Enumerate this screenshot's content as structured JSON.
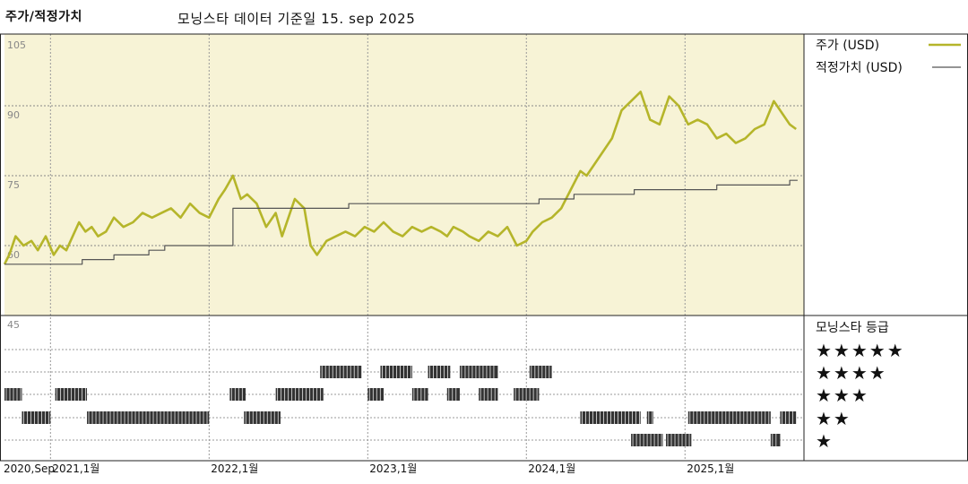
{
  "header": {
    "left_title": "주가/적정가치",
    "center_title": "모닝스타 데이터 기준일 15. sep 2025"
  },
  "legend": {
    "price_label": "주가 (USD)",
    "fair_value_label": "적정가치 (USD)",
    "price_color": "#b5b52a",
    "fair_value_color": "#555555"
  },
  "rating_panel": {
    "title": "모닝스타 등급",
    "stars": [
      "★★★★★",
      "★★★★",
      "★★★",
      "★★",
      "★"
    ]
  },
  "colors": {
    "plot_background": "#f7f3d6",
    "rating_bar": "#333333"
  },
  "chart_data": {
    "type": "line",
    "y_ticks": [
      "105",
      "90",
      "75",
      "60",
      "45"
    ],
    "ylim": [
      45,
      105
    ],
    "x_ticks": [
      "2020,Sep",
      "2021,1월",
      "2022,1월",
      "2023,1월",
      "2024,1월",
      "2025,1월"
    ],
    "x_tick_dates": [
      2020.71,
      2021.0,
      2022.0,
      2023.0,
      2024.0,
      2025.0
    ],
    "xlim": [
      2020.71,
      2025.75
    ],
    "series": [
      {
        "name": "주가 (USD)",
        "x": [
          2020.71,
          2020.74,
          2020.78,
          2020.83,
          2020.88,
          2020.92,
          2020.97,
          2021.02,
          2021.06,
          2021.1,
          2021.14,
          2021.18,
          2021.22,
          2021.26,
          2021.3,
          2021.35,
          2021.4,
          2021.46,
          2021.52,
          2021.58,
          2021.64,
          2021.7,
          2021.76,
          2021.82,
          2021.88,
          2021.94,
          2022.0,
          2022.06,
          2022.1,
          2022.15,
          2022.2,
          2022.24,
          2022.3,
          2022.36,
          2022.42,
          2022.46,
          2022.5,
          2022.54,
          2022.6,
          2022.64,
          2022.68,
          2022.74,
          2022.8,
          2022.86,
          2022.92,
          2022.98,
          2023.04,
          2023.1,
          2023.16,
          2023.22,
          2023.28,
          2023.34,
          2023.4,
          2023.46,
          2023.5,
          2023.54,
          2023.6,
          2023.64,
          2023.7,
          2023.76,
          2023.82,
          2023.88,
          2023.94,
          2024.0,
          2024.04,
          2024.1,
          2024.16,
          2024.22,
          2024.28,
          2024.34,
          2024.38,
          2024.42,
          2024.48,
          2024.54,
          2024.6,
          2024.66,
          2024.72,
          2024.78,
          2024.84,
          2024.9,
          2024.96,
          2025.02,
          2025.08,
          2025.14,
          2025.2,
          2025.26,
          2025.32,
          2025.38,
          2025.44,
          2025.5,
          2025.56,
          2025.62,
          2025.66,
          2025.7
        ],
        "values": [
          56,
          58,
          62,
          60,
          61,
          59,
          62,
          58,
          60,
          59,
          62,
          65,
          63,
          64,
          62,
          63,
          66,
          64,
          65,
          67,
          66,
          67,
          68,
          66,
          69,
          67,
          66,
          70,
          72,
          75,
          70,
          71,
          69,
          64,
          67,
          62,
          66,
          70,
          68,
          60,
          58,
          61,
          62,
          63,
          62,
          64,
          63,
          65,
          63,
          62,
          64,
          63,
          64,
          63,
          62,
          64,
          63,
          62,
          61,
          63,
          62,
          64,
          60,
          61,
          63,
          65,
          66,
          68,
          72,
          76,
          75,
          77,
          80,
          83,
          89,
          91,
          93,
          87,
          86,
          92,
          90,
          86,
          87,
          86,
          83,
          84,
          82,
          83,
          85,
          86,
          91,
          88,
          86,
          85
        ]
      },
      {
        "name": "적정가치 (USD)",
        "x": [
          2020.71,
          2020.72,
          2021.0,
          2021.2,
          2021.2,
          2021.4,
          2021.4,
          2021.62,
          2021.62,
          2021.72,
          2021.72,
          2022.0,
          2022.0,
          2022.15,
          2022.15,
          2022.88,
          2022.88,
          2023.6,
          2023.6,
          2024.04,
          2024.04,
          2024.08,
          2024.08,
          2024.3,
          2024.3,
          2024.52,
          2024.52,
          2024.68,
          2024.68,
          2025.0,
          2025.0,
          2025.2,
          2025.2,
          2025.4,
          2025.4,
          2025.66,
          2025.66,
          2025.71
        ],
        "values": [
          56,
          56,
          56,
          56,
          57,
          57,
          58,
          58,
          59,
          59,
          60,
          60,
          60,
          60,
          68,
          68,
          69,
          69,
          69,
          69,
          69,
          69,
          70,
          70,
          71,
          71,
          71,
          71,
          72,
          72,
          72,
          72,
          73,
          73,
          73,
          73,
          74,
          74
        ]
      }
    ],
    "rating_bars": [
      {
        "stars": 3,
        "x_ranges": [
          [
            2020.71,
            2020.82
          ],
          [
            2021.03,
            2021.23
          ],
          [
            2022.13,
            2022.23
          ],
          [
            2022.42,
            2022.72
          ],
          [
            2023.0,
            2023.1
          ],
          [
            2023.28,
            2023.38
          ],
          [
            2023.5,
            2023.58
          ],
          [
            2023.7,
            2023.82
          ],
          [
            2023.92,
            2024.08
          ]
        ]
      },
      {
        "stars": 4,
        "x_ranges": [
          [
            2022.7,
            2022.96
          ],
          [
            2023.08,
            2023.28
          ],
          [
            2023.38,
            2023.52
          ],
          [
            2023.58,
            2023.82
          ],
          [
            2024.02,
            2024.16
          ]
        ]
      },
      {
        "stars": 2,
        "x_ranges": [
          [
            2020.82,
            2021.0
          ],
          [
            2021.23,
            2022.0
          ],
          [
            2022.22,
            2022.45
          ],
          [
            2024.34,
            2024.72
          ],
          [
            2024.76,
            2024.8
          ],
          [
            2025.02,
            2025.54
          ],
          [
            2025.6,
            2025.7
          ]
        ]
      },
      {
        "stars": 1,
        "x_ranges": [
          [
            2024.66,
            2024.86
          ],
          [
            2024.88,
            2025.04
          ],
          [
            2025.54,
            2025.6
          ]
        ]
      }
    ]
  }
}
